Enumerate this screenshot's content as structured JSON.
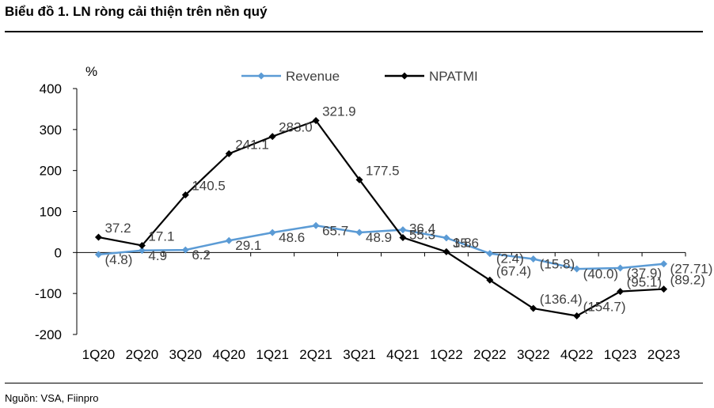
{
  "header": {
    "title": "Biểu đồ 1. LN ròng cải thiện trên nền quý"
  },
  "footer": {
    "source": "Nguồn: VSA, Fiinpro"
  },
  "colors": {
    "revenue": "#5B9BD5",
    "npatmi": "#000000",
    "axis": "#000000",
    "text": "#404040"
  },
  "chart_data": {
    "type": "line",
    "title": "Biểu đồ 1. LN ròng cải thiện trên nền quý",
    "ylabel": "%",
    "xlabel": "",
    "ylim": [
      -200,
      400
    ],
    "yticks": [
      400,
      300,
      200,
      100,
      0,
      -100,
      -200
    ],
    "ytick_labels": [
      "400",
      "300",
      "200",
      "100",
      "0",
      "-100",
      "-200"
    ],
    "grid": false,
    "legend_position": "top-center",
    "categories": [
      "1Q20",
      "2Q20",
      "3Q20",
      "4Q20",
      "1Q21",
      "2Q21",
      "3Q21",
      "4Q21",
      "1Q22",
      "2Q22",
      "3Q22",
      "4Q22",
      "1Q23",
      "2Q23"
    ],
    "series": [
      {
        "name": "Revenue",
        "color": "#5B9BD5",
        "values": [
          -4.8,
          4.9,
          6.2,
          29.1,
          48.6,
          65.7,
          48.9,
          55.3,
          35.6,
          -2.4,
          -15.8,
          -40.0,
          -37.9,
          -27.71
        ],
        "labels": [
          "(4.8)",
          "4.9",
          "6.2",
          "29.1",
          "48.6",
          "65.7",
          "48.9",
          "55.3",
          "35.6",
          "(2.4)",
          "(15.8)",
          "(40.0)",
          "(37.9)",
          "(27.71)"
        ]
      },
      {
        "name": "NPATMI",
        "color": "#000000",
        "values": [
          37.2,
          17.1,
          140.5,
          241.1,
          283.0,
          321.9,
          177.5,
          36.4,
          1.8,
          -67.4,
          -136.4,
          -154.7,
          -95.1,
          -89.2
        ],
        "labels": [
          "37.2",
          "17.1",
          "140.5",
          "241.1",
          "283.0",
          "321.9",
          "177.5",
          "36.4",
          "1.8",
          "(67.4)",
          "(136.4)",
          "(154.7)",
          "(95.1)",
          "(89.2)"
        ]
      }
    ]
  }
}
